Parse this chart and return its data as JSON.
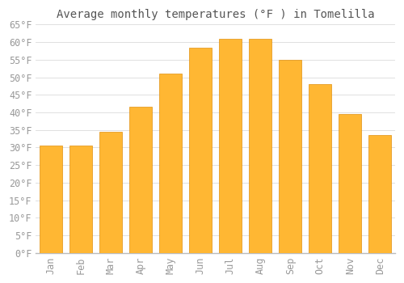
{
  "title": "Average monthly temperatures (°F ) in Tomelilla",
  "months": [
    "Jan",
    "Feb",
    "Mar",
    "Apr",
    "May",
    "Jun",
    "Jul",
    "Aug",
    "Sep",
    "Oct",
    "Nov",
    "Dec"
  ],
  "values": [
    30.5,
    30.5,
    34.5,
    41.5,
    51.0,
    58.5,
    61.0,
    61.0,
    55.0,
    48.0,
    39.5,
    33.5
  ],
  "bar_color_top": "#FFB733",
  "bar_color_bottom": "#FFA500",
  "bar_edge_color": "#E09010",
  "ylim": [
    0,
    65
  ],
  "yticks": [
    0,
    5,
    10,
    15,
    20,
    25,
    30,
    35,
    40,
    45,
    50,
    55,
    60,
    65
  ],
  "background_color": "#ffffff",
  "grid_color": "#e0e0e0",
  "title_fontsize": 10,
  "tick_fontsize": 8.5,
  "tick_label_color": "#999999",
  "title_color": "#555555",
  "font_family": "monospace"
}
